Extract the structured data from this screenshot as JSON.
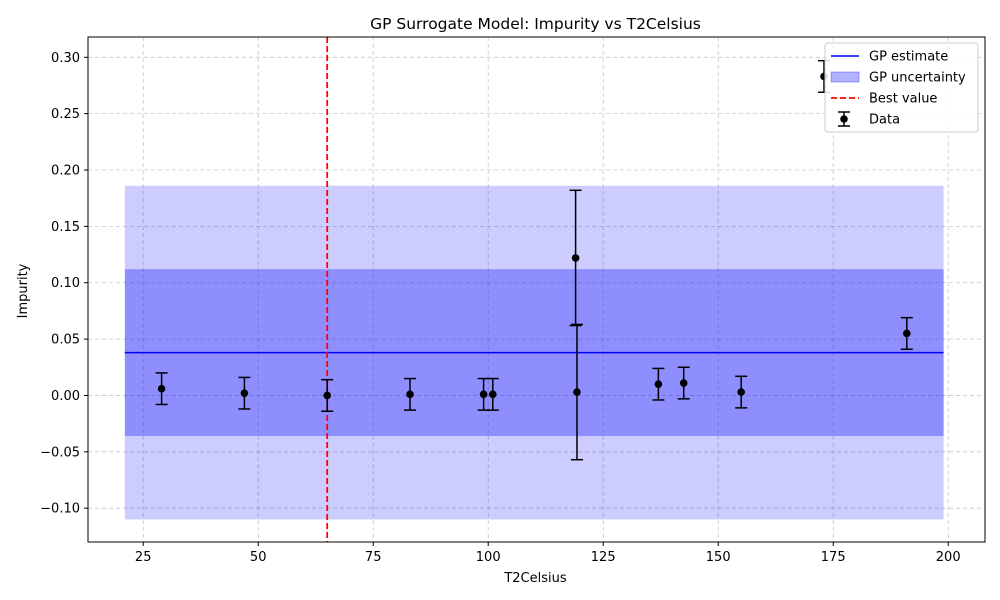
{
  "chart_data": {
    "type": "scatter",
    "title": "GP Surrogate Model: Impurity vs T2Celsius",
    "xlabel": "T2Celsius",
    "ylabel": "Impurity",
    "xlim": [
      13,
      208
    ],
    "ylim": [
      -0.13,
      0.318
    ],
    "x_ticks": [
      25,
      50,
      75,
      100,
      125,
      150,
      175,
      200
    ],
    "y_ticks": [
      -0.1,
      -0.05,
      0.0,
      0.05,
      0.1,
      0.15,
      0.2,
      0.25,
      0.3
    ],
    "grid": true,
    "legend_position": "top-right",
    "gp_estimate": {
      "name": "GP estimate",
      "x_range": [
        21,
        199
      ],
      "y": 0.038,
      "color": "#0000ff"
    },
    "gp_uncertainty": {
      "name": "GP uncertainty",
      "x_range": [
        21,
        199
      ],
      "inner_band": [
        -0.036,
        0.112
      ],
      "outer_band": [
        -0.11,
        0.186
      ],
      "color": "#0000ff"
    },
    "best_value": {
      "name": "Best value",
      "x": 65,
      "color": "#ff0000"
    },
    "data": {
      "name": "Data",
      "points": [
        {
          "x": 29,
          "y": 0.006,
          "err": 0.014
        },
        {
          "x": 47,
          "y": 0.002,
          "err": 0.014
        },
        {
          "x": 65,
          "y": 0.0,
          "err": 0.014
        },
        {
          "x": 83,
          "y": 0.001,
          "err": 0.014
        },
        {
          "x": 99,
          "y": 0.001,
          "err": 0.014
        },
        {
          "x": 101,
          "y": 0.001,
          "err": 0.014
        },
        {
          "x": 119,
          "y": 0.122,
          "err": 0.06
        },
        {
          "x": 119.3,
          "y": 0.003,
          "err": 0.06
        },
        {
          "x": 137,
          "y": 0.01,
          "err": 0.014
        },
        {
          "x": 142.5,
          "y": 0.011,
          "err": 0.014
        },
        {
          "x": 155,
          "y": 0.003,
          "err": 0.014
        },
        {
          "x": 173,
          "y": 0.283,
          "err": 0.014
        },
        {
          "x": 191,
          "y": 0.055,
          "err": 0.014
        }
      ],
      "color": "#000000"
    }
  }
}
